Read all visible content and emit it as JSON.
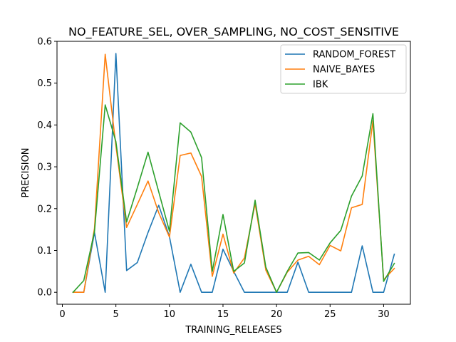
{
  "chart_data": {
    "type": "line",
    "title": "NO_FEATURE_SEL, OVER_SAMPLING, NO_COST_SENSITIVE",
    "xlabel": "TRAINING_RELEASES",
    "ylabel": "PRECISION",
    "xlim": [
      -0.5,
      32.5
    ],
    "ylim": [
      -0.0286,
      0.6
    ],
    "xticks": [
      0,
      5,
      10,
      15,
      20,
      25,
      30
    ],
    "yticks": [
      0.0,
      0.1,
      0.2,
      0.3,
      0.4,
      0.5,
      0.6
    ],
    "ytick_labels": [
      "0.0",
      "0.1",
      "0.2",
      "0.3",
      "0.4",
      "0.5",
      "0.6"
    ],
    "grid": false,
    "legend_position": "upper right",
    "x": [
      1,
      2,
      3,
      4,
      5,
      6,
      7,
      8,
      9,
      10,
      11,
      12,
      13,
      14,
      15,
      16,
      17,
      18,
      19,
      20,
      21,
      22,
      23,
      24,
      25,
      26,
      27,
      28,
      29,
      30,
      31
    ],
    "series": [
      {
        "name": "RANDOM_FOREST",
        "color": "#1f77b4",
        "values": [
          0,
          0,
          0.143,
          0,
          0.571,
          0.052,
          0.071,
          0.143,
          0.208,
          0.133,
          0,
          0.067,
          0,
          0,
          0.103,
          0.05,
          0,
          0,
          0,
          0,
          0,
          0.072,
          0,
          0,
          0,
          0,
          0,
          0.111,
          0,
          0,
          0.091
        ]
      },
      {
        "name": "NAIVE_BAYES",
        "color": "#ff7f0e",
        "values": [
          0,
          0,
          0.153,
          0.569,
          0.35,
          0.155,
          0.21,
          0.266,
          0.19,
          0.132,
          0.327,
          0.333,
          0.277,
          0.038,
          0.139,
          0.046,
          0.082,
          0.212,
          0.053,
          0,
          0.048,
          0.077,
          0.086,
          0.066,
          0.112,
          0.099,
          0.202,
          0.21,
          0.41,
          0.03,
          0.057
        ]
      },
      {
        "name": "IBK",
        "color": "#2ca02c",
        "values": [
          0,
          0.028,
          0.145,
          0.448,
          0.36,
          0.168,
          0.25,
          0.335,
          0.24,
          0.146,
          0.405,
          0.383,
          0.322,
          0.05,
          0.186,
          0.05,
          0.07,
          0.22,
          0.06,
          0,
          0.05,
          0.094,
          0.095,
          0.077,
          0.118,
          0.148,
          0.23,
          0.278,
          0.427,
          0.026,
          0.069
        ]
      }
    ]
  }
}
